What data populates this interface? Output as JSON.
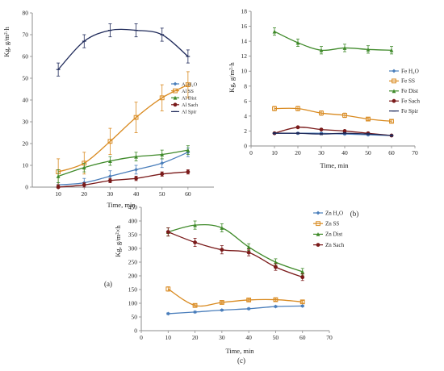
{
  "colors": {
    "axis": "#8c8c8c",
    "text": "#222222",
    "H2O": "#4a7ebb",
    "SS": "#d98a20",
    "Dist": "#3f8a2a",
    "Sach": "#7a1a1a",
    "Spir": "#1f2a5a"
  },
  "chart_data": [
    {
      "id": "a",
      "type": "line",
      "caption": "(a)",
      "xlabel": "Time, min",
      "ylabel": "Kg, g/m²·h",
      "xlim": [
        0,
        70
      ],
      "ylim": [
        0,
        80
      ],
      "xticks": [
        10,
        20,
        30,
        40,
        50,
        60
      ],
      "yticks": [
        0,
        10,
        20,
        30,
        40,
        50,
        60,
        70,
        80
      ],
      "legend_position": "right-middle",
      "series": [
        {
          "name": "Al H₂O",
          "color_key": "H2O",
          "marker": "diamond",
          "x": [
            10,
            20,
            30,
            40,
            50,
            60
          ],
          "y": [
            1,
            2,
            5,
            8,
            11,
            16
          ],
          "err": [
            1,
            2,
            2.5,
            2,
            2,
            2
          ]
        },
        {
          "name": "Al SS",
          "color_key": "SS",
          "marker": "square",
          "x": [
            10,
            20,
            30,
            40,
            50,
            60
          ],
          "y": [
            7,
            11,
            21,
            32,
            41,
            47
          ],
          "err": [
            6,
            5,
            6,
            7,
            6,
            6
          ]
        },
        {
          "name": "Al Dist",
          "color_key": "Dist",
          "marker": "triangle",
          "x": [
            10,
            20,
            30,
            40,
            50,
            60
          ],
          "y": [
            5,
            9,
            12,
            14,
            15,
            17
          ],
          "err": [
            3,
            2,
            2,
            2,
            2,
            2
          ]
        },
        {
          "name": "Al Sach",
          "color_key": "Sach",
          "marker": "circle",
          "x": [
            10,
            20,
            30,
            40,
            50,
            60
          ],
          "y": [
            0,
            1,
            3,
            4,
            6,
            7
          ],
          "err": [
            1,
            1,
            1,
            1,
            1,
            1
          ]
        },
        {
          "name": "Al Spir",
          "color_key": "Spir",
          "marker": "dash",
          "x": [
            10,
            20,
            30,
            40,
            50,
            60
          ],
          "y": [
            54,
            67,
            72,
            72,
            70,
            60
          ],
          "err": [
            3,
            3,
            3,
            3,
            3,
            3
          ]
        }
      ]
    },
    {
      "id": "b",
      "type": "line",
      "caption": "(b)",
      "xlabel": "Time, min",
      "ylabel": "Kg, g/m²·h",
      "xlim": [
        0,
        70
      ],
      "ylim": [
        0,
        18
      ],
      "xticks": [
        0,
        10,
        20,
        30,
        40,
        50,
        60,
        70
      ],
      "yticks": [
        0,
        2,
        4,
        6,
        8,
        10,
        12,
        14,
        16,
        18
      ],
      "legend_position": "right-middle",
      "series": [
        {
          "name": "Fe H₂O",
          "color_key": "H2O",
          "marker": "diamond",
          "x": [
            10,
            20,
            30,
            40,
            50,
            60
          ],
          "y": [
            1.7,
            1.7,
            1.7,
            1.6,
            1.5,
            1.4
          ],
          "err": [
            0.1,
            0.1,
            0.1,
            0.1,
            0.1,
            0.1
          ]
        },
        {
          "name": "Fe SS",
          "color_key": "SS",
          "marker": "square",
          "x": [
            10,
            20,
            30,
            40,
            50,
            60
          ],
          "y": [
            5.0,
            5.0,
            4.4,
            4.1,
            3.6,
            3.3
          ],
          "err": [
            0.3,
            0.3,
            0.3,
            0.3,
            0.2,
            0.2
          ]
        },
        {
          "name": "Fe Dist",
          "color_key": "Dist",
          "marker": "triangle",
          "x": [
            10,
            20,
            30,
            40,
            50,
            60
          ],
          "y": [
            15.3,
            13.8,
            12.8,
            13.1,
            12.9,
            12.8
          ],
          "err": [
            0.5,
            0.5,
            0.5,
            0.5,
            0.5,
            0.5
          ]
        },
        {
          "name": "Fe Sach",
          "color_key": "Sach",
          "marker": "circle",
          "x": [
            10,
            20,
            30,
            40,
            50,
            60
          ],
          "y": [
            1.7,
            2.5,
            2.2,
            2.0,
            1.7,
            1.4
          ],
          "err": [
            0.1,
            0.1,
            0.1,
            0.1,
            0.1,
            0.1
          ]
        },
        {
          "name": "Fe Spir",
          "color_key": "Spir",
          "marker": "dash",
          "x": [
            10,
            20,
            30,
            40,
            50,
            60
          ],
          "y": [
            1.7,
            1.7,
            1.6,
            1.7,
            1.6,
            1.4
          ],
          "err": [
            0.1,
            0.1,
            0.1,
            0.1,
            0.1,
            0.1
          ]
        }
      ]
    },
    {
      "id": "c",
      "type": "line",
      "caption": "(c)",
      "xlabel": "Time, min",
      "ylabel": "Kg, g/m²×h",
      "xlim": [
        0,
        70
      ],
      "ylim": [
        0,
        450
      ],
      "xticks": [
        0,
        10,
        20,
        30,
        40,
        50,
        60,
        70
      ],
      "yticks": [
        0,
        50,
        100,
        150,
        200,
        250,
        300,
        350,
        400,
        450
      ],
      "legend_position": "right-top",
      "series": [
        {
          "name": "Zn H₂O",
          "color_key": "H2O",
          "marker": "diamond",
          "x": [
            10,
            20,
            30,
            40,
            50,
            60
          ],
          "y": [
            62,
            68,
            75,
            80,
            88,
            90
          ],
          "err": [
            3,
            3,
            3,
            3,
            3,
            3
          ]
        },
        {
          "name": "Zn SS",
          "color_key": "SS",
          "marker": "square",
          "x": [
            10,
            20,
            30,
            40,
            50,
            60
          ],
          "y": [
            152,
            92,
            103,
            112,
            113,
            105
          ],
          "err": [
            8,
            5,
            5,
            5,
            5,
            5
          ]
        },
        {
          "name": "Zn Dist",
          "color_key": "Dist",
          "marker": "triangle",
          "x": [
            10,
            20,
            30,
            40,
            50,
            60
          ],
          "y": [
            360,
            385,
            375,
            305,
            250,
            215
          ],
          "err": [
            15,
            15,
            15,
            12,
            12,
            12
          ]
        },
        {
          "name": "Zn Sach",
          "color_key": "Sach",
          "marker": "circle",
          "x": [
            10,
            20,
            30,
            40,
            50,
            60
          ],
          "y": [
            360,
            322,
            295,
            285,
            232,
            195
          ],
          "err": [
            15,
            15,
            15,
            12,
            12,
            12
          ]
        }
      ]
    }
  ]
}
